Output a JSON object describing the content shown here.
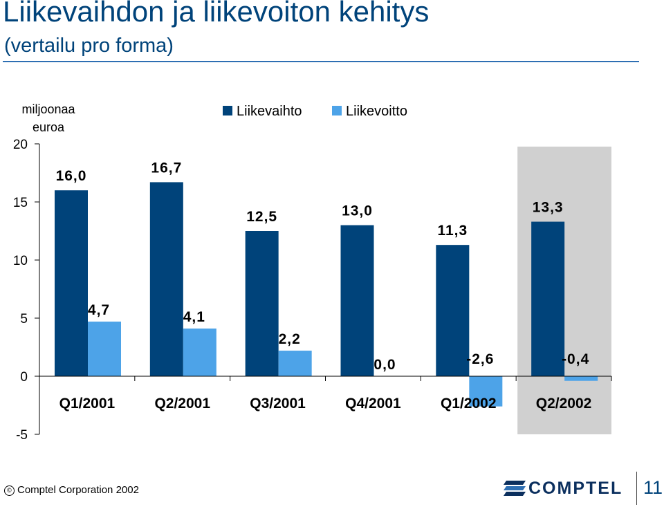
{
  "header": {
    "title": "Liikevaihdon ja liikevoiton kehitys",
    "subtitle": "(vertailu pro forma)"
  },
  "chart_data": {
    "type": "bar",
    "ylabel": "miljoonaa euroa",
    "ylim": [
      -5,
      20
    ],
    "yticks": [
      "20",
      "15",
      "10",
      "5",
      "0",
      "-5"
    ],
    "categories": [
      "Q1/2001",
      "Q2/2001",
      "Q3/2001",
      "Q4/2001",
      "Q1/2002",
      "Q2/2002"
    ],
    "series": [
      {
        "name": "Liikevaihto",
        "color": "#00437a",
        "values": [
          16.0,
          16.7,
          12.5,
          13.0,
          11.3,
          13.3
        ],
        "labels": [
          "16,0",
          "16,7",
          "12,5",
          "13,0",
          "11,3",
          "13,3"
        ]
      },
      {
        "name": "Liikevoitto",
        "color": "#4da3e8",
        "values": [
          4.7,
          4.1,
          2.2,
          0.0,
          -2.6,
          -0.4
        ],
        "labels": [
          "4,7",
          "4,1",
          "2,2",
          "0,0",
          "-2,6",
          "-0,4"
        ]
      }
    ],
    "highlight_category": "Q2/2002",
    "highlight_color": "#d0d0d0",
    "legend_position": "top"
  },
  "footer": {
    "copyright_symbol": "©",
    "copyright": "Comptel Corporation 2002",
    "logo_text": "COMPTEL",
    "page_number": "11"
  }
}
